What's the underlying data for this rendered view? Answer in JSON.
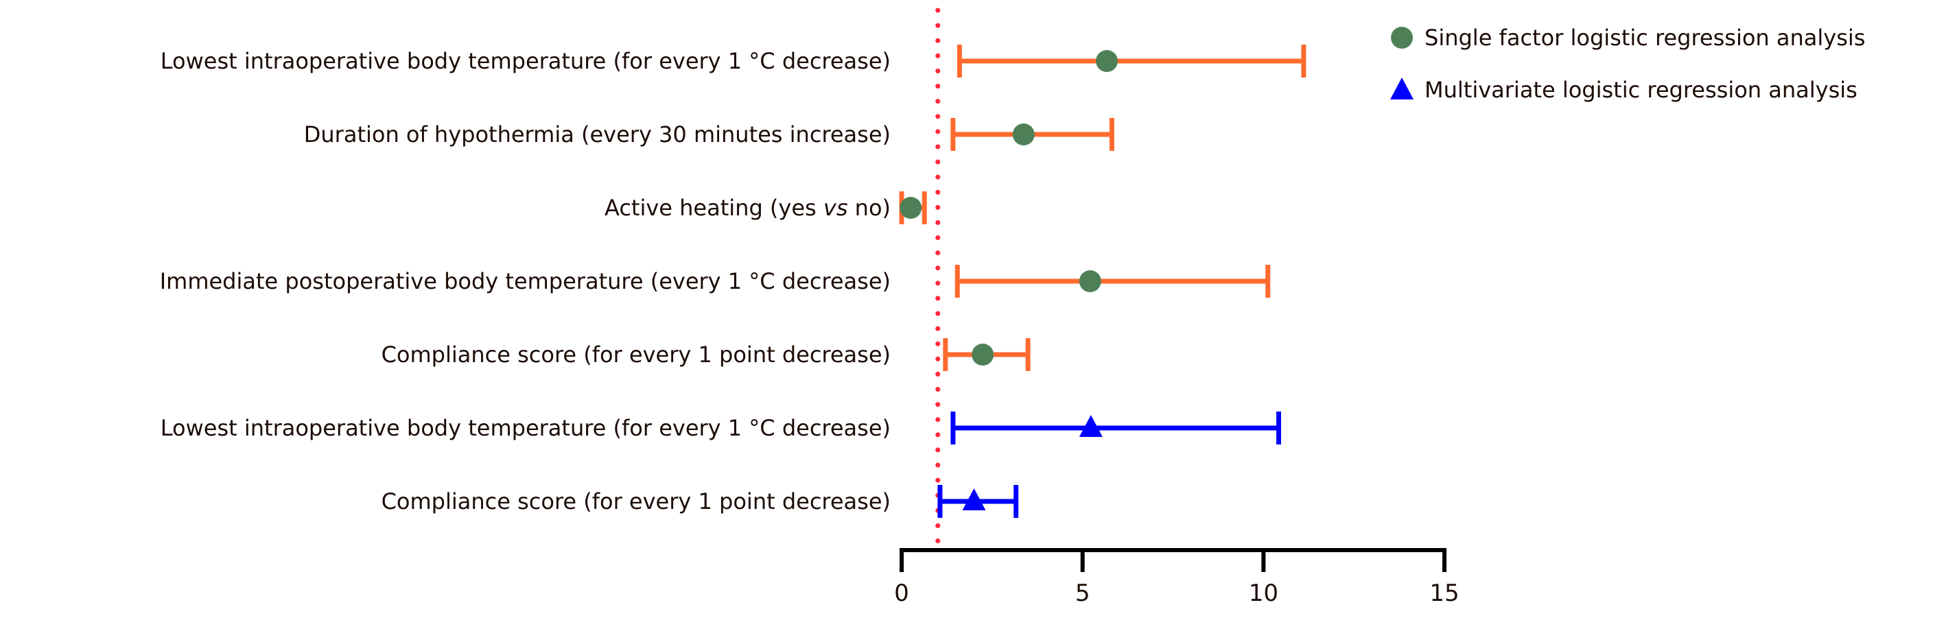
{
  "chart_data": {
    "type": "forest",
    "xlim": [
      0,
      15
    ],
    "xticks": [
      0,
      5,
      10,
      15
    ],
    "xtick_labels": [
      "0",
      "5",
      "10",
      "15"
    ],
    "reference_line": 1,
    "grid": false,
    "legend_placement": "top-right",
    "legend": [
      {
        "label": "Single factor logistic regression analysis",
        "marker": "circle",
        "color": "#4E8057"
      },
      {
        "label": "Multivariate logistic regression analysis",
        "marker": "triangle",
        "color": "#0000FF"
      }
    ],
    "colors": {
      "single_bar": "#FF6A2E",
      "single_marker": "#4E8057",
      "multi": "#0000FF",
      "reference": "#FF2A3A",
      "axis": "#000000"
    },
    "rows": [
      {
        "label_parts": [
          {
            "text": "Lowest intraoperative body temperature (for every 1 °C decrease)",
            "italic": false
          }
        ],
        "series": "single",
        "estimate": 5.67,
        "lower": 1.6,
        "upper": 11.11
      },
      {
        "label_parts": [
          {
            "text": "Duration of hypothermia (every 30 minutes increase)",
            "italic": false
          }
        ],
        "series": "single",
        "estimate": 3.37,
        "lower": 1.42,
        "upper": 5.81
      },
      {
        "label_parts": [
          {
            "text": "Active heating (yes ",
            "italic": false
          },
          {
            "text": "vs",
            "italic": true
          },
          {
            "text": " no)",
            "italic": false
          }
        ],
        "series": "single",
        "estimate": 0.25,
        "lower": 0.0,
        "upper": 0.63
      },
      {
        "label_parts": [
          {
            "text": "Immediate postoperative body temperature (every 1 °C decrease)",
            "italic": false
          }
        ],
        "series": "single",
        "estimate": 5.21,
        "lower": 1.54,
        "upper": 10.12
      },
      {
        "label_parts": [
          {
            "text": "Compliance score (for every 1 point decrease)",
            "italic": false
          }
        ],
        "series": "single",
        "estimate": 2.24,
        "lower": 1.21,
        "upper": 3.49
      },
      {
        "label_parts": [
          {
            "text": "Lowest intraoperative body temperature (for every 1 °C decrease)",
            "italic": false
          }
        ],
        "series": "multi",
        "estimate": 5.23,
        "lower": 1.42,
        "upper": 10.42
      },
      {
        "label_parts": [
          {
            "text": "Compliance score (for every 1 point decrease)",
            "italic": false
          }
        ],
        "series": "multi",
        "estimate": 2.0,
        "lower": 1.06,
        "upper": 3.16
      }
    ]
  }
}
